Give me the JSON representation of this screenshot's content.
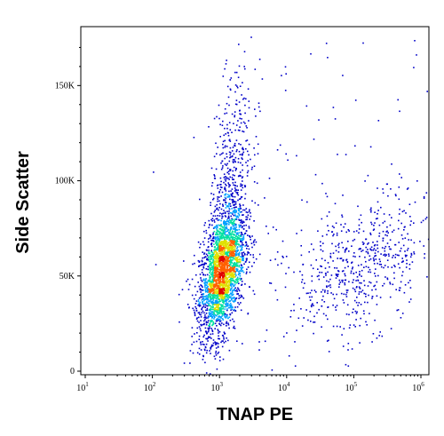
{
  "chart_data": {
    "type": "scatter",
    "title": "",
    "xlabel": "TNAP PE",
    "ylabel": "Side Scatter",
    "x_scale": "log",
    "xlim": [
      10,
      1000000
    ],
    "ylim": [
      0,
      180000
    ],
    "x_ticks": [
      {
        "base": "10",
        "exp": "1",
        "value": 10
      },
      {
        "base": "10",
        "exp": "2",
        "value": 100
      },
      {
        "base": "10",
        "exp": "3",
        "value": 1000
      },
      {
        "base": "10",
        "exp": "4",
        "value": 10000
      },
      {
        "base": "10",
        "exp": "5",
        "value": 100000
      },
      {
        "base": "10",
        "exp": "6",
        "value": 1000000
      }
    ],
    "y_ticks": [
      {
        "label": "0",
        "value": 0
      },
      {
        "label": "50K",
        "value": 50000
      },
      {
        "label": "100K",
        "value": 100000
      },
      {
        "label": "150K",
        "value": 150000
      }
    ],
    "grid": false,
    "density_colors": [
      "#0000c8",
      "#00a0ff",
      "#00e0a0",
      "#e0e000",
      "#ff6000",
      "#e00000"
    ],
    "clusters": [
      {
        "name": "main-population",
        "x_log_center": 3.03,
        "y_center": 52000,
        "x_log_spread": 0.17,
        "y_spread": 15000,
        "points": 2600
      },
      {
        "name": "upper-tail",
        "x_log_center": 3.15,
        "y_center": 95000,
        "x_log_spread": 0.16,
        "y_spread": 28000,
        "points": 500
      },
      {
        "name": "high-tnap-population",
        "x_log_center": 5.1,
        "y_center": 55000,
        "x_log_spread": 0.55,
        "y_spread": 17000,
        "points": 600
      },
      {
        "name": "sparse-scatter",
        "x_log_center": 4.2,
        "y_center": 100000,
        "x_log_spread": 1.0,
        "y_spread": 45000,
        "points": 120
      }
    ]
  }
}
